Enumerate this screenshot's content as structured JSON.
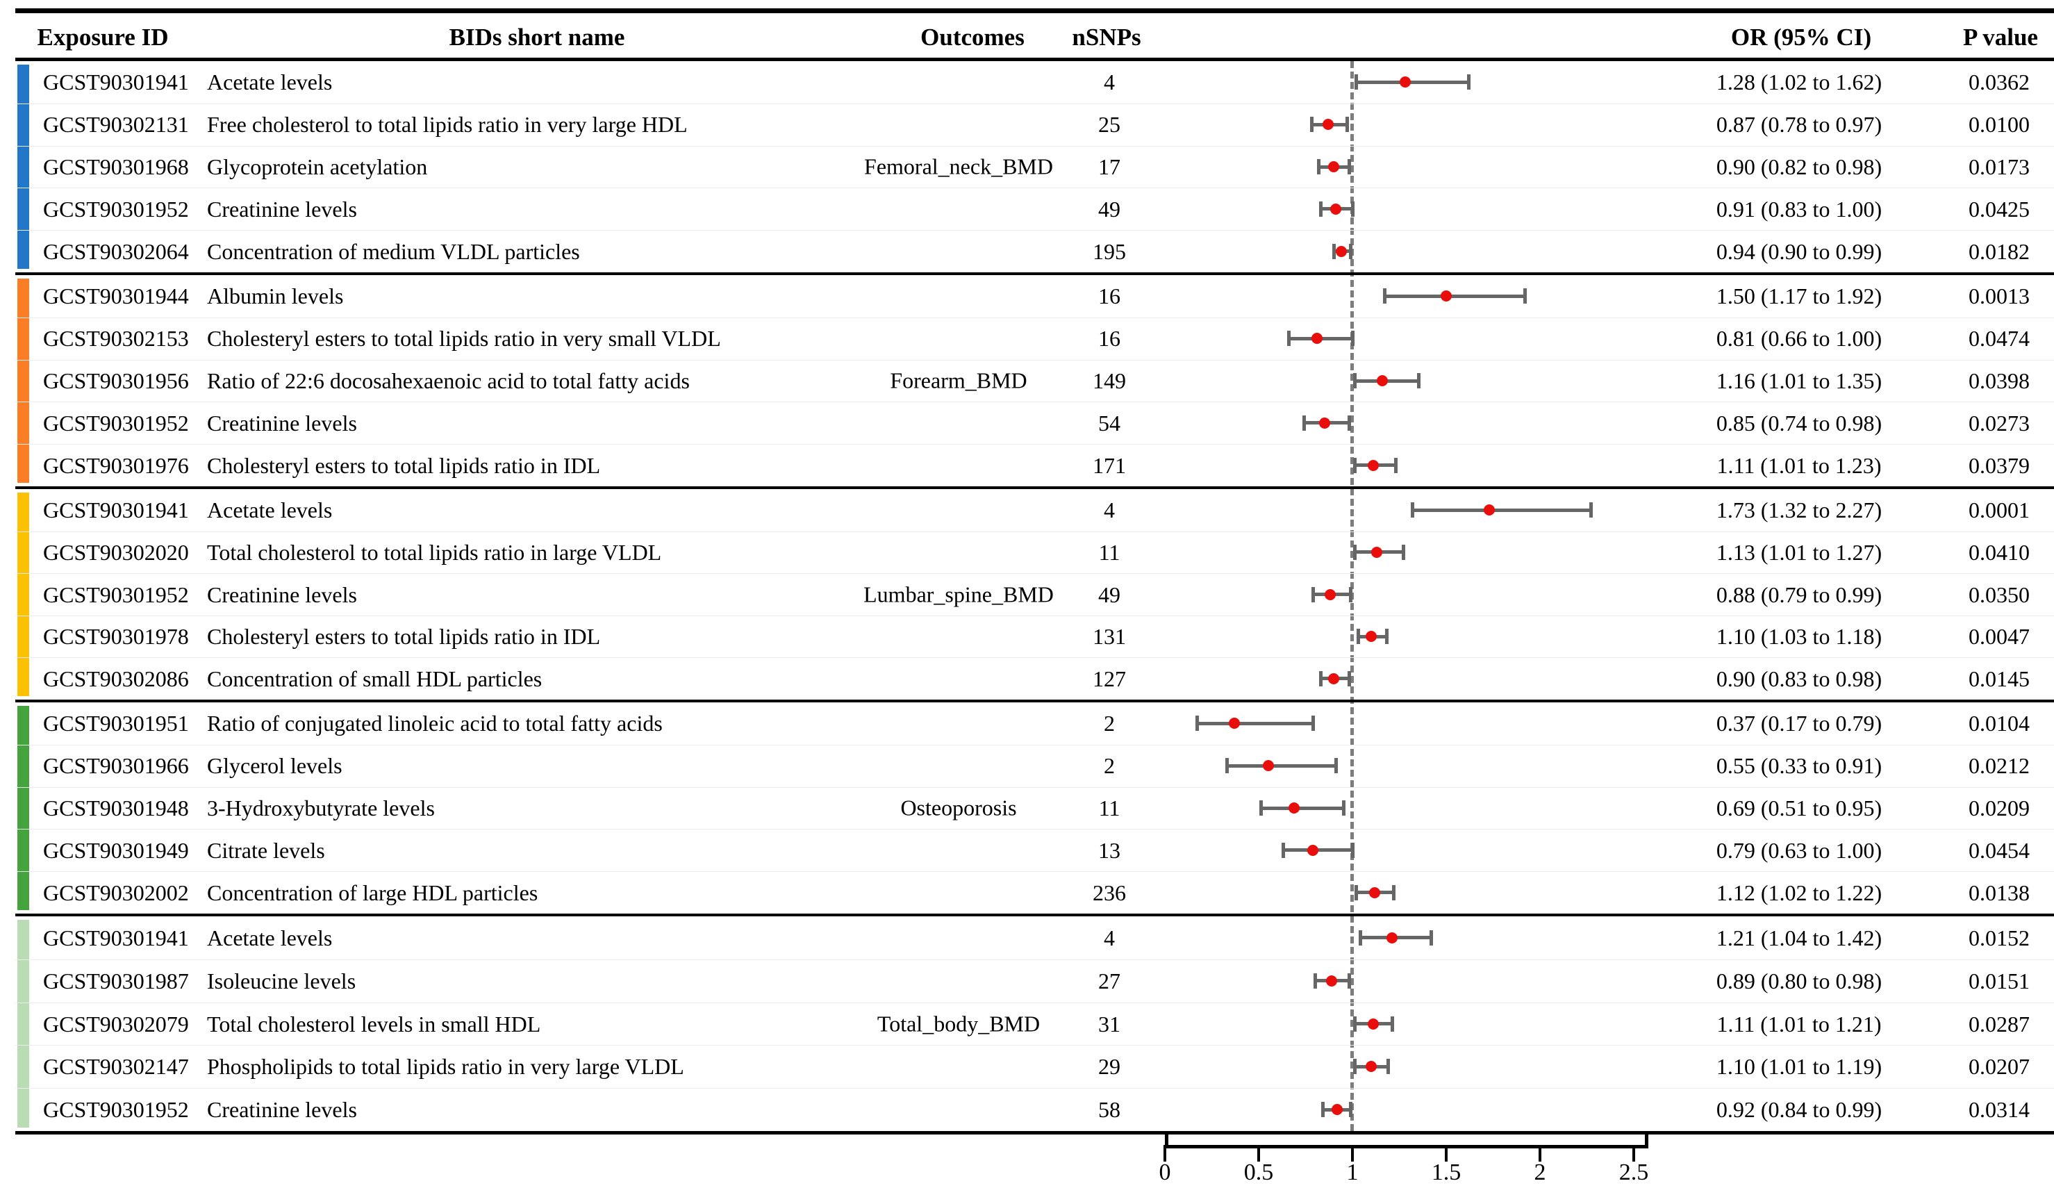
{
  "header": {
    "exposure_id": "Exposure ID",
    "bids_short_name": "BIDs short name",
    "outcomes": "Outcomes",
    "nsnps": "nSNPs",
    "or_ci": "OR (95% CI)",
    "p_value": "P value"
  },
  "chart_data": {
    "type": "scatter",
    "variant": "forest-plot",
    "title": "",
    "xlabel": "",
    "ylabel": "",
    "x_axis": {
      "tick_labels": [
        "0",
        "0.5",
        "1",
        "1.5",
        "2",
        "2.5"
      ],
      "tick_values": [
        0,
        0.5,
        1,
        1.5,
        2,
        2.5
      ],
      "range": [
        0,
        2.6
      ],
      "reference_line": 1
    },
    "point_color": "#e90d0c",
    "whisker_color": "#666666",
    "reference_line_color": "#7d7d7d",
    "groups": [
      {
        "outcome": "Femoral_neck_BMD",
        "bar_color": "#2277c8",
        "rows": [
          {
            "exposure_id": "GCST90301941",
            "bids_short_name": "Acetate levels",
            "nsnps": "4",
            "or": 1.28,
            "ci_low": 1.02,
            "ci_high": 1.62,
            "or_ci": "1.28 (1.02 to 1.62)",
            "p_value": "0.0362"
          },
          {
            "exposure_id": "GCST90302131",
            "bids_short_name": "Free cholesterol to total lipids ratio in very large HDL",
            "nsnps": "25",
            "or": 0.87,
            "ci_low": 0.78,
            "ci_high": 0.97,
            "or_ci": "0.87 (0.78 to 0.97)",
            "p_value": "0.0100"
          },
          {
            "exposure_id": "GCST90301968",
            "bids_short_name": "Glycoprotein acetylation",
            "nsnps": "17",
            "or": 0.9,
            "ci_low": 0.82,
            "ci_high": 0.98,
            "or_ci": "0.90 (0.82 to 0.98)",
            "p_value": "0.0173"
          },
          {
            "exposure_id": "GCST90301952",
            "bids_short_name": "Creatinine levels",
            "nsnps": "49",
            "or": 0.91,
            "ci_low": 0.83,
            "ci_high": 1.0,
            "or_ci": "0.91 (0.83 to 1.00)",
            "p_value": "0.0425"
          },
          {
            "exposure_id": "GCST90302064",
            "bids_short_name": "Concentration of medium VLDL particles",
            "nsnps": "195",
            "or": 0.94,
            "ci_low": 0.9,
            "ci_high": 0.99,
            "or_ci": "0.94 (0.90 to 0.99)",
            "p_value": "0.0182"
          }
        ]
      },
      {
        "outcome": "Forearm_BMD",
        "bar_color": "#fb7d26",
        "rows": [
          {
            "exposure_id": "GCST90301944",
            "bids_short_name": "Albumin levels",
            "nsnps": "16",
            "or": 1.5,
            "ci_low": 1.17,
            "ci_high": 1.92,
            "or_ci": "1.50 (1.17 to 1.92)",
            "p_value": "0.0013"
          },
          {
            "exposure_id": "GCST90302153",
            "bids_short_name": "Cholesteryl esters to total lipids ratio in very small VLDL",
            "nsnps": "16",
            "or": 0.81,
            "ci_low": 0.66,
            "ci_high": 1.0,
            "or_ci": "0.81 (0.66 to 1.00)",
            "p_value": "0.0474"
          },
          {
            "exposure_id": "GCST90301956",
            "bids_short_name": "Ratio of 22:6 docosahexaenoic acid to total fatty acids",
            "nsnps": "149",
            "or": 1.16,
            "ci_low": 1.01,
            "ci_high": 1.35,
            "or_ci": "1.16 (1.01 to 1.35)",
            "p_value": "0.0398"
          },
          {
            "exposure_id": "GCST90301952",
            "bids_short_name": "Creatinine levels",
            "nsnps": "54",
            "or": 0.85,
            "ci_low": 0.74,
            "ci_high": 0.98,
            "or_ci": "0.85 (0.74 to 0.98)",
            "p_value": "0.0273"
          },
          {
            "exposure_id": "GCST90301976",
            "bids_short_name": "Cholesteryl esters to total lipids ratio in IDL",
            "nsnps": "171",
            "or": 1.11,
            "ci_low": 1.01,
            "ci_high": 1.23,
            "or_ci": "1.11 (1.01 to 1.23)",
            "p_value": "0.0379"
          }
        ]
      },
      {
        "outcome": "Lumbar_spine_BMD",
        "bar_color": "#fcc005",
        "rows": [
          {
            "exposure_id": "GCST90301941",
            "bids_short_name": "Acetate levels",
            "nsnps": "4",
            "or": 1.73,
            "ci_low": 1.32,
            "ci_high": 2.27,
            "or_ci": "1.73 (1.32 to 2.27)",
            "p_value": "0.0001"
          },
          {
            "exposure_id": "GCST90302020",
            "bids_short_name": "Total cholesterol to total lipids ratio in large VLDL",
            "nsnps": "11",
            "or": 1.13,
            "ci_low": 1.01,
            "ci_high": 1.27,
            "or_ci": "1.13 (1.01 to 1.27)",
            "p_value": "0.0410"
          },
          {
            "exposure_id": "GCST90301952",
            "bids_short_name": "Creatinine levels",
            "nsnps": "49",
            "or": 0.88,
            "ci_low": 0.79,
            "ci_high": 0.99,
            "or_ci": "0.88 (0.79 to 0.99)",
            "p_value": "0.0350"
          },
          {
            "exposure_id": "GCST90301978",
            "bids_short_name": "Cholesteryl esters to total lipids ratio in IDL",
            "nsnps": "131",
            "or": 1.1,
            "ci_low": 1.03,
            "ci_high": 1.18,
            "or_ci": "1.10 (1.03 to 1.18)",
            "p_value": "0.0047"
          },
          {
            "exposure_id": "GCST90302086",
            "bids_short_name": "Concentration of small HDL particles",
            "nsnps": "127",
            "or": 0.9,
            "ci_low": 0.83,
            "ci_high": 0.98,
            "or_ci": "0.90 (0.83 to 0.98)",
            "p_value": "0.0145"
          }
        ]
      },
      {
        "outcome": "Osteoporosis",
        "bar_color": "#44a33d",
        "rows": [
          {
            "exposure_id": "GCST90301951",
            "bids_short_name": "Ratio of conjugated linoleic acid to total fatty acids",
            "nsnps": "2",
            "or": 0.37,
            "ci_low": 0.17,
            "ci_high": 0.79,
            "or_ci": "0.37 (0.17 to 0.79)",
            "p_value": "0.0104"
          },
          {
            "exposure_id": "GCST90301966",
            "bids_short_name": "Glycerol levels",
            "nsnps": "2",
            "or": 0.55,
            "ci_low": 0.33,
            "ci_high": 0.91,
            "or_ci": "0.55 (0.33 to 0.91)",
            "p_value": "0.0212"
          },
          {
            "exposure_id": "GCST90301948",
            "bids_short_name": "3-Hydroxybutyrate levels",
            "nsnps": "11",
            "or": 0.69,
            "ci_low": 0.51,
            "ci_high": 0.95,
            "or_ci": "0.69 (0.51 to 0.95)",
            "p_value": "0.0209"
          },
          {
            "exposure_id": "GCST90301949",
            "bids_short_name": "Citrate levels",
            "nsnps": "13",
            "or": 0.79,
            "ci_low": 0.63,
            "ci_high": 1.0,
            "or_ci": "0.79 (0.63 to 1.00)",
            "p_value": "0.0454"
          },
          {
            "exposure_id": "GCST90302002",
            "bids_short_name": "Concentration of large HDL particles",
            "nsnps": "236",
            "or": 1.12,
            "ci_low": 1.02,
            "ci_high": 1.22,
            "or_ci": "1.12 (1.02 to 1.22)",
            "p_value": "0.0138"
          }
        ]
      },
      {
        "outcome": "Total_body_BMD",
        "bar_color": "#badcb5",
        "rows": [
          {
            "exposure_id": "GCST90301941",
            "bids_short_name": "Acetate levels",
            "nsnps": "4",
            "or": 1.21,
            "ci_low": 1.04,
            "ci_high": 1.42,
            "or_ci": "1.21 (1.04 to 1.42)",
            "p_value": "0.0152"
          },
          {
            "exposure_id": "GCST90301987",
            "bids_short_name": "Isoleucine levels",
            "nsnps": "27",
            "or": 0.89,
            "ci_low": 0.8,
            "ci_high": 0.98,
            "or_ci": "0.89 (0.80 to 0.98)",
            "p_value": "0.0151"
          },
          {
            "exposure_id": "GCST90302079",
            "bids_short_name": "Total cholesterol levels in small HDL",
            "nsnps": "31",
            "or": 1.11,
            "ci_low": 1.01,
            "ci_high": 1.21,
            "or_ci": "1.11 (1.01 to 1.21)",
            "p_value": "0.0287"
          },
          {
            "exposure_id": "GCST90302147",
            "bids_short_name": "Phospholipids to total lipids ratio in very large VLDL",
            "nsnps": "29",
            "or": 1.1,
            "ci_low": 1.01,
            "ci_high": 1.19,
            "or_ci": "1.10 (1.01 to 1.19)",
            "p_value": "0.0207"
          },
          {
            "exposure_id": "GCST90301952",
            "bids_short_name": "Creatinine levels",
            "nsnps": "58",
            "or": 0.92,
            "ci_low": 0.84,
            "ci_high": 0.99,
            "or_ci": "0.92 (0.84 to 0.99)",
            "p_value": "0.0314"
          }
        ]
      }
    ]
  }
}
